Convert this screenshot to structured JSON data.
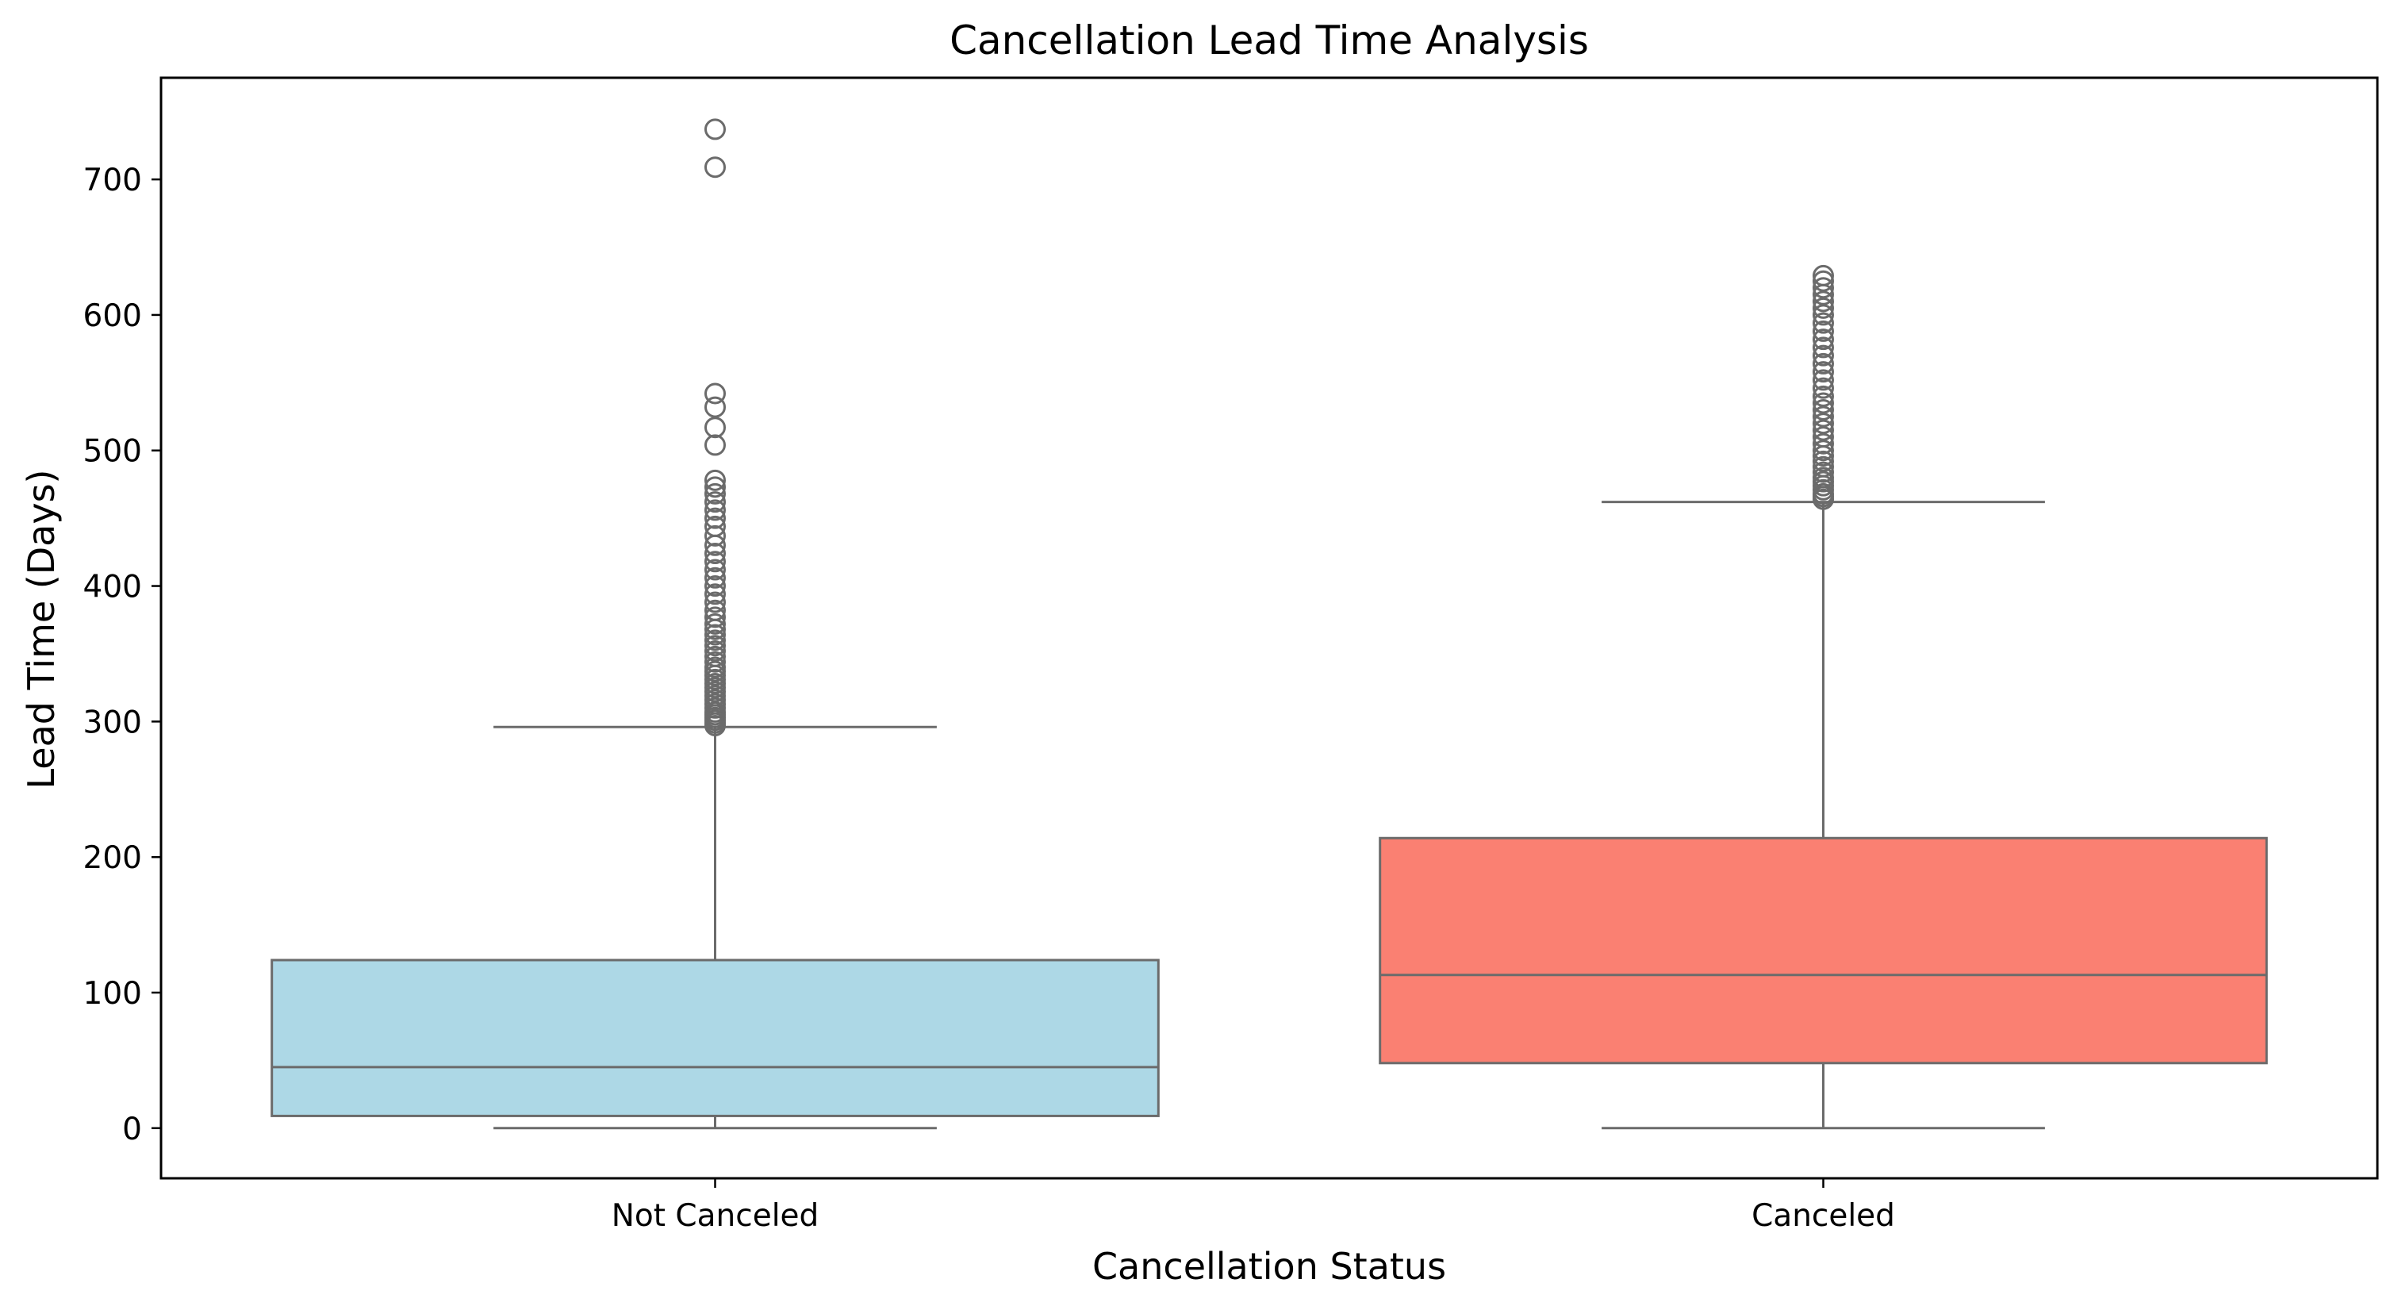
{
  "chart_data": {
    "type": "box",
    "title": "Cancellation Lead Time Analysis",
    "xlabel": "Cancellation Status",
    "ylabel": "Lead Time (Days)",
    "ylim": [
      -37,
      775
    ],
    "yticks": [
      0,
      100,
      200,
      300,
      400,
      500,
      600,
      700
    ],
    "categories": [
      "Not Canceled",
      "Canceled"
    ],
    "grid": false,
    "legend": "none",
    "boxes": [
      {
        "category": "Not Canceled",
        "color": "#add8e6",
        "whisker_low": 0,
        "q1": 9,
        "median": 45,
        "q3": 124,
        "whisker_high": 296,
        "outliers": [
          297,
          299,
          301,
          303,
          305,
          307,
          310,
          313,
          316,
          319,
          322,
          325,
          328,
          331,
          334,
          337,
          340,
          344,
          348,
          352,
          356,
          360,
          364,
          368,
          372,
          377,
          382,
          388,
          394,
          400,
          406,
          412,
          418,
          424,
          430,
          437,
          444,
          450,
          456,
          462,
          468,
          473,
          478,
          504,
          517,
          532,
          542,
          709,
          737
        ]
      },
      {
        "category": "Canceled",
        "color": "#fa8072",
        "whisker_low": 0,
        "q1": 48,
        "median": 113,
        "q3": 214,
        "whisker_high": 462,
        "outliers": [
          464,
          466,
          468,
          471,
          474,
          477,
          480,
          484,
          488,
          492,
          496,
          500,
          505,
          510,
          515,
          520,
          525,
          530,
          535,
          540,
          546,
          552,
          558,
          564,
          570,
          576,
          582,
          588,
          594,
          600,
          605,
          610,
          615,
          620,
          625,
          629
        ]
      }
    ]
  }
}
